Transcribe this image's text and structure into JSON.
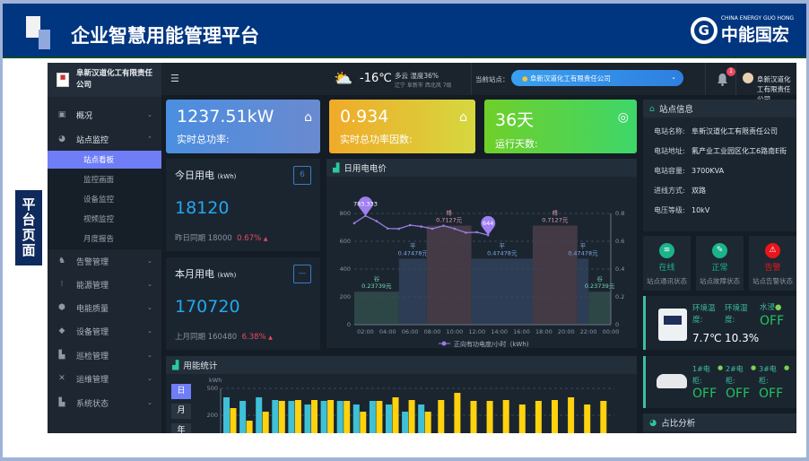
{
  "slide": {
    "title": "企业智慧用能管理平台",
    "logo_en": "CHINA ENERGY GUO HONG",
    "logo_cn": "中能国宏",
    "side_label": "平台页面"
  },
  "sidebar": {
    "company": "阜新汉道化工有限责任公司",
    "items": [
      {
        "label": "概况",
        "icon": "monitor-icon"
      },
      {
        "label": "站点监控",
        "icon": "dashboard-icon"
      },
      {
        "label": "告警管理",
        "icon": "alarm-icon"
      },
      {
        "label": "能源管理",
        "icon": "energy-icon"
      },
      {
        "label": "电能质量",
        "icon": "power-quality-icon"
      },
      {
        "label": "设备管理",
        "icon": "cube-icon"
      },
      {
        "label": "巡检管理",
        "icon": "bar-chart-icon"
      },
      {
        "label": "运维管理",
        "icon": "tools-icon"
      },
      {
        "label": "系统状态",
        "icon": "bar-chart-icon"
      }
    ],
    "subitems": [
      "站点看板",
      "监控画面",
      "设备监控",
      "视频监控",
      "月度报告"
    ],
    "active_subitem": "站点看板"
  },
  "topbar": {
    "temp": "-16℃",
    "weather": "多云 湿度36%",
    "location": "辽宁 阜新市 西北风 7级",
    "site_label": "当前站点：",
    "site_value": "阜新汉道化工有限责任公司",
    "notifications": "1",
    "user": "阜新汉道化工有限责任公司"
  },
  "cards": [
    {
      "value": "1237.51kW",
      "label": "实时总功率:"
    },
    {
      "value": "0.934",
      "label": "实时总功率因数:"
    },
    {
      "value": "36天",
      "label": "运行天数:"
    }
  ],
  "today": {
    "title": "今日用电",
    "unit": "(kWh)",
    "value": "18120",
    "cmp_label": "昨日同期",
    "cmp_value": "18000",
    "change": "0.67%",
    "cal": "6"
  },
  "month": {
    "title": "本月用电",
    "unit": "(kWh)",
    "value": "170720",
    "cmp_label": "上月同期",
    "cmp_value": "160480",
    "change": "6.38%"
  },
  "site_info": {
    "title": "站点信息",
    "rows": [
      {
        "k": "电站名称:",
        "v": "阜新汉道化工有限责任公司"
      },
      {
        "k": "电站地址:",
        "v": "氟产业工业园区化工6路南E街"
      },
      {
        "k": "电站容量:",
        "v": "3700KVA"
      },
      {
        "k": "进线方式:",
        "v": "双路"
      },
      {
        "k": "电压等级:",
        "v": "10kV"
      }
    ]
  },
  "status": [
    {
      "state": "在线",
      "label": "站点通讯状态",
      "color": "#1bb38a",
      "icon": "wifi-icon"
    },
    {
      "state": "正常",
      "label": "站点故障状态",
      "color": "#1bb38a",
      "icon": "wrench-icon"
    },
    {
      "state": "告警",
      "label": "站点告警状态",
      "color": "#e8161b",
      "icon": "warning-icon"
    }
  ],
  "env": {
    "temp_label": "环境温度:",
    "temp": "7.7℃",
    "hum_label": "环境湿度:",
    "hum": "10.3%",
    "water_label": "水浸",
    "water": "OFF"
  },
  "smoke": [
    {
      "label": "1#电柜:",
      "v": "OFF"
    },
    {
      "label": "2#电柜:",
      "v": "OFF"
    },
    {
      "label": "3#电柜:",
      "v": "OFF"
    }
  ],
  "ratio": {
    "title": "占比分析"
  },
  "chart_data": [
    {
      "type": "bar+line",
      "title": "日用电电价",
      "xticks": [
        "02:00",
        "04:00",
        "06:00",
        "08:00",
        "10:00",
        "12:00",
        "14:00",
        "16:00",
        "18:00",
        "20:00",
        "22:00",
        "00:00"
      ],
      "xlim": [
        1,
        24
      ],
      "ylim": [
        0,
        800
      ],
      "yticks": [
        0,
        200,
        400,
        600,
        800
      ],
      "y2lim": [
        0,
        0.8
      ],
      "y2ticks": [
        0,
        0.2,
        0.4,
        0.6,
        0.8
      ],
      "price_bands": [
        {
          "from": 1,
          "to": 5,
          "name": "谷",
          "price": "0.23739元",
          "value": 0.23739,
          "color": "#2d4646",
          "tc": "#7fd3b6"
        },
        {
          "from": 5,
          "to": 7.5,
          "name": "平",
          "price": "0.47478元",
          "value": 0.47478,
          "color": "#2d3d55",
          "tc": "#7fa6e8"
        },
        {
          "from": 7.5,
          "to": 11.5,
          "name": "峰",
          "price": "0.7127元",
          "value": 0.7127,
          "color": "#433a45",
          "tc": "#e39aa8"
        },
        {
          "from": 11.5,
          "to": 17,
          "name": "平",
          "price": "0.47478元",
          "value": 0.47478,
          "color": "#2d3d55",
          "tc": "#7fa6e8"
        },
        {
          "from": 17,
          "to": 21,
          "name": "峰",
          "price": "0.7127元",
          "value": 0.7127,
          "color": "#433a45",
          "tc": "#e39aa8"
        },
        {
          "from": 21,
          "to": 22,
          "name": "平",
          "price": "0.47478元",
          "value": 0.47478,
          "color": "#2d3d55",
          "tc": "#7fa6e8"
        },
        {
          "from": 22,
          "to": 24,
          "name": "谷",
          "price": "0.23739元",
          "value": 0.23739,
          "color": "#2d4646",
          "tc": "#7fd3b6"
        }
      ],
      "series": [
        {
          "name": "正向有功电度/小时（kWh)",
          "color": "#9b7be0",
          "x": [
            1,
            2,
            3,
            4,
            5,
            6,
            7,
            8,
            9,
            10,
            11,
            12,
            13
          ],
          "y": [
            730,
            783.333,
            745,
            692,
            690,
            716,
            706,
            690,
            712,
            690,
            662,
            665,
            644
          ]
        }
      ],
      "markers": [
        "783.333",
        "644"
      ]
    },
    {
      "type": "bar",
      "title": "用能统计",
      "ylabel": "kWh",
      "yticks": [
        "1,500",
        "1,200"
      ],
      "ylim_visible": [
        1100,
        1500
      ],
      "series": [
        {
          "color": "#3fc0d9",
          "values": [
            1400,
            1360,
            1400,
            1370,
            1360,
            1320,
            1360,
            1360,
            1320,
            1360,
            1320,
            1240,
            1320
          ]
        },
        {
          "color": "#fed20d",
          "values": [
            1280,
            1140,
            1240,
            1360,
            1370,
            1370,
            1370,
            1360,
            1240,
            1360,
            1400,
            1370,
            1240,
            1370,
            1450,
            1360,
            1360,
            1370,
            1320,
            1360,
            1370,
            1400,
            1320,
            1360
          ]
        }
      ],
      "range_buttons": [
        "日",
        "月",
        "年"
      ]
    }
  ]
}
